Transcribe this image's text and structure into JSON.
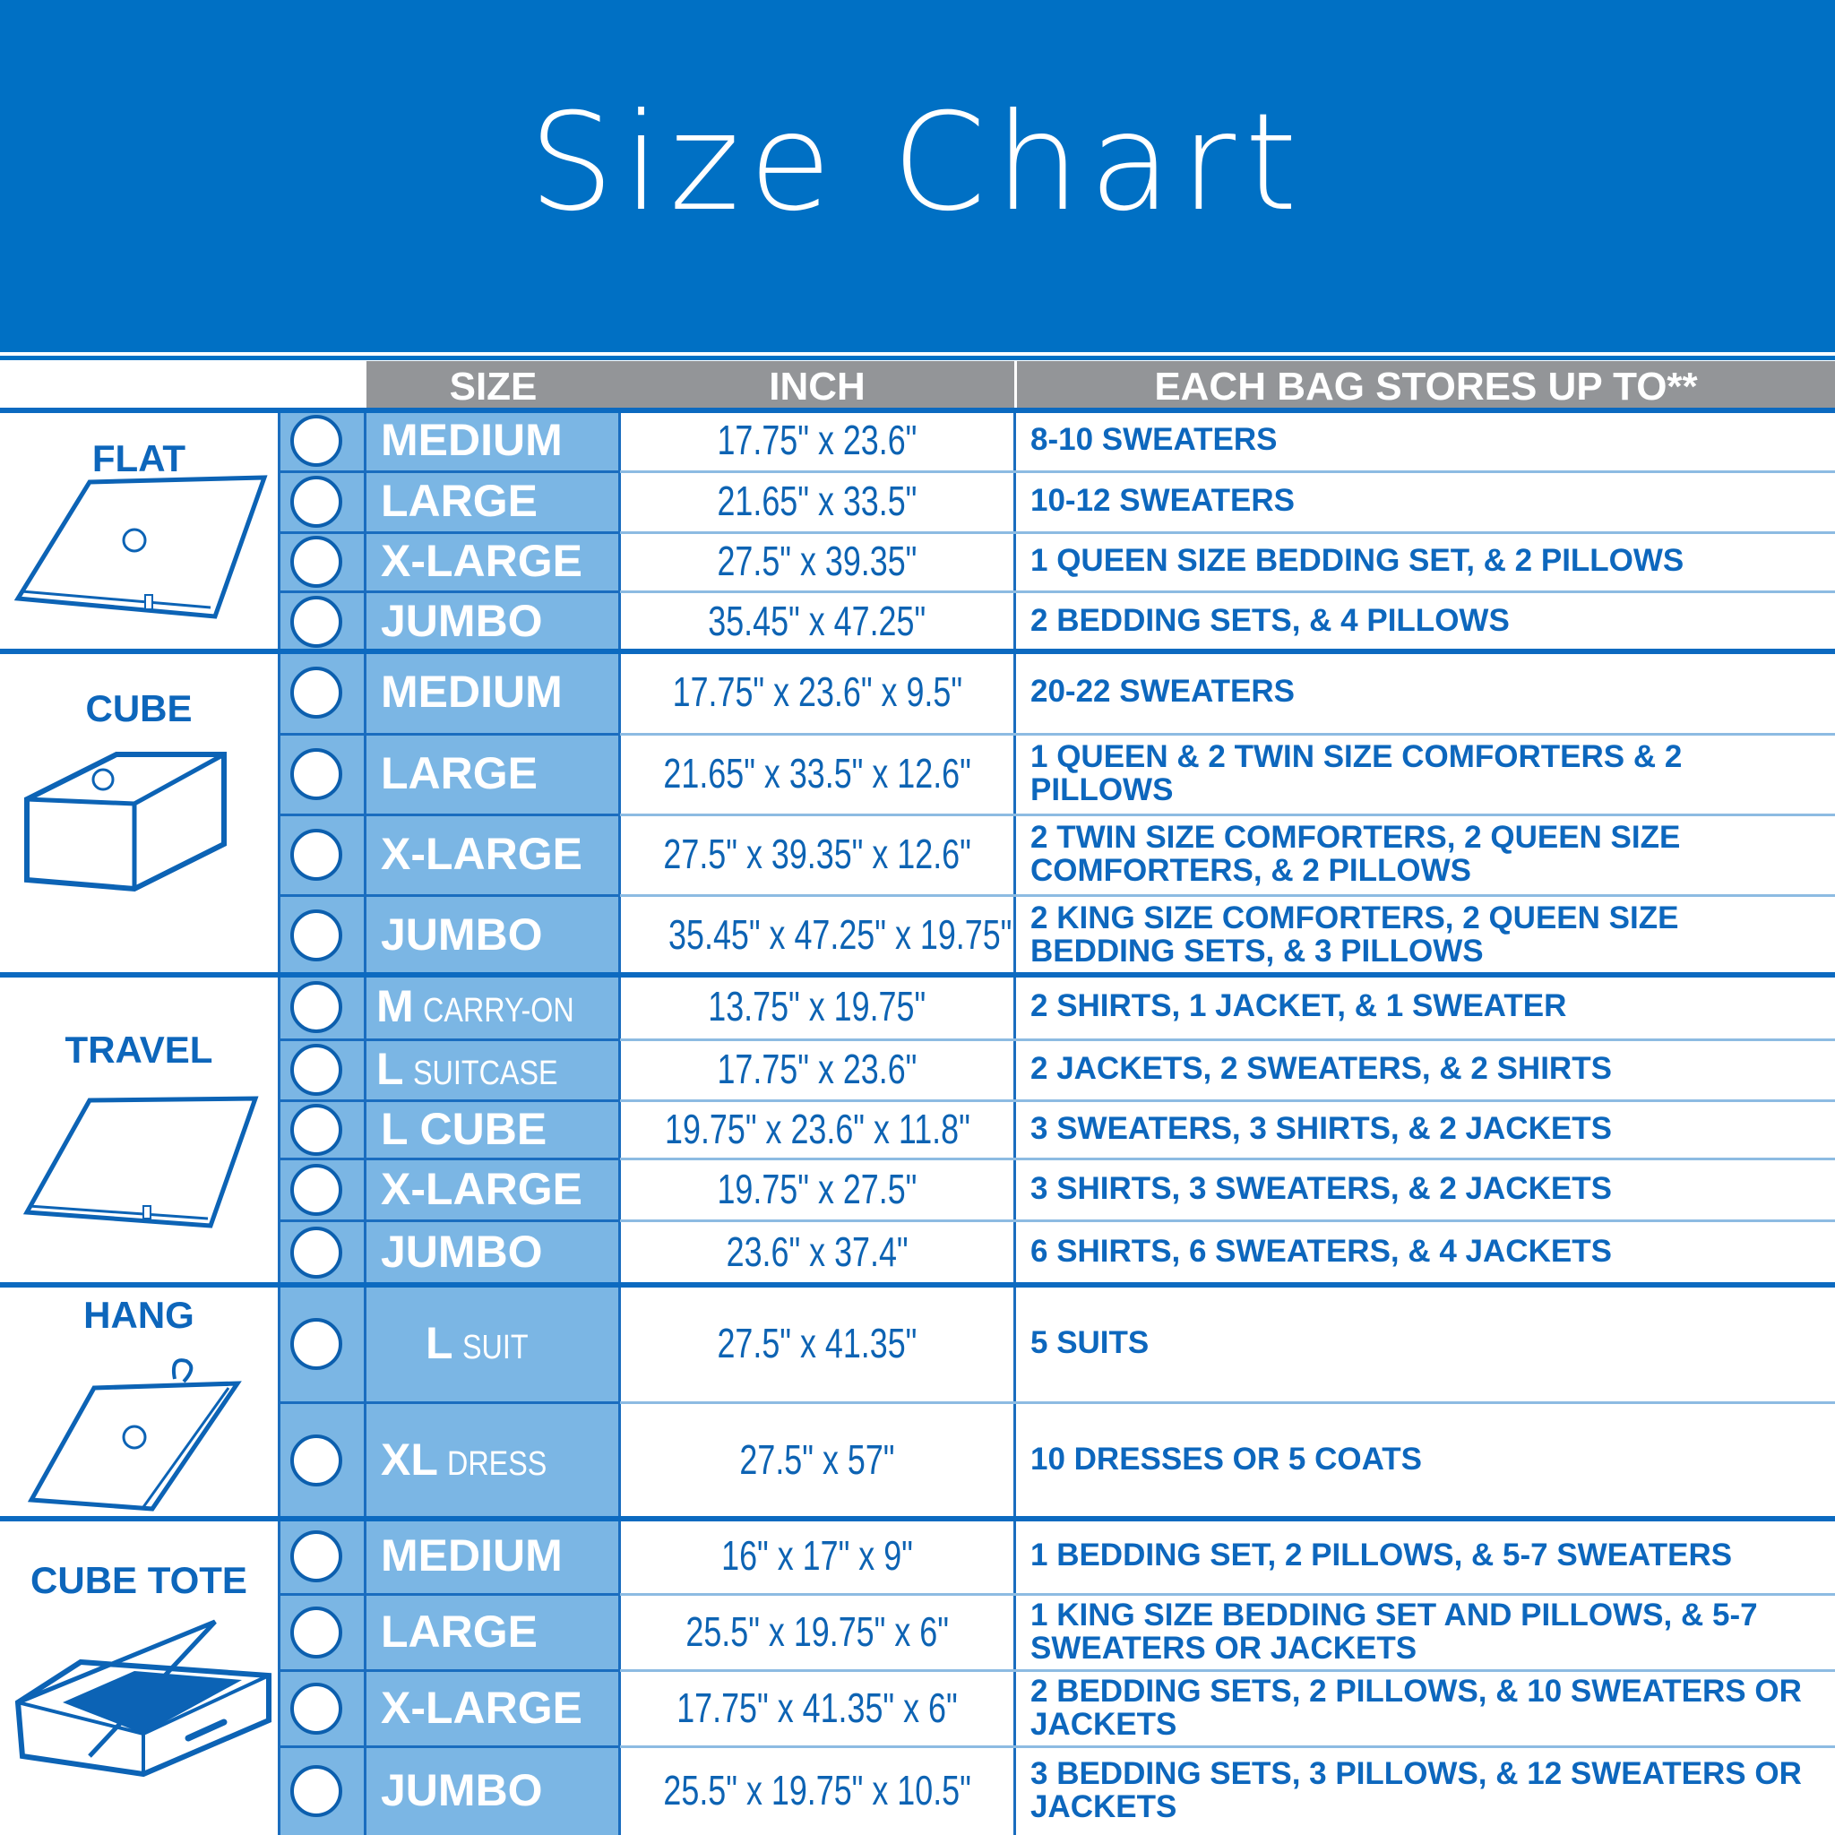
{
  "title": "Size Chart",
  "headers": {
    "size": "SIZE",
    "inch": "INCH",
    "stores": "EACH BAG STORES UP TO**"
  },
  "colors": {
    "banner": "#0070c4",
    "size_column": "#7bb6e4",
    "header_gray": "#939598",
    "text_blue": "#0d66bb"
  },
  "groups": [
    {
      "category": "FLAT",
      "icon": "flat-bag-icon",
      "rows": [
        {
          "size": "MEDIUM",
          "sub": "",
          "inch": "17.75\" x 23.6\"",
          "stores": "8-10 SWEATERS"
        },
        {
          "size": "LARGE",
          "sub": "",
          "inch": "21.65\" x 33.5\"",
          "stores": "10-12 SWEATERS"
        },
        {
          "size": "X-LARGE",
          "sub": "",
          "inch": "27.5\" x 39.35\"",
          "stores": "1 QUEEN SIZE BEDDING SET, & 2 PILLOWS"
        },
        {
          "size": "JUMBO",
          "sub": "",
          "inch": "35.45\" x 47.25\"",
          "stores": "2 BEDDING SETS, & 4 PILLOWS"
        }
      ]
    },
    {
      "category": "CUBE",
      "icon": "cube-bag-icon",
      "rows": [
        {
          "size": "MEDIUM",
          "sub": "",
          "inch": "17.75\" x 23.6\" x 9.5\"",
          "stores": "20-22 SWEATERS"
        },
        {
          "size": "LARGE",
          "sub": "",
          "inch": "21.65\" x 33.5\" x 12.6\"",
          "stores": "1 QUEEN & 2 TWIN SIZE COMFORTERS & 2 PILLOWS"
        },
        {
          "size": "X-LARGE",
          "sub": "",
          "inch": "27.5\" x 39.35\" x 12.6\"",
          "stores": "2 TWIN SIZE COMFORTERS, 2 QUEEN SIZE COMFORTERS, & 2 PILLOWS"
        },
        {
          "size": "JUMBO",
          "sub": "",
          "inch": "35.45\" x 47.25\" x 19.75\"",
          "stores": "2 KING SIZE COMFORTERS, 2 QUEEN SIZE BEDDING SETS, & 3 PILLOWS"
        }
      ]
    },
    {
      "category": "TRAVEL",
      "icon": "travel-bag-icon",
      "rows": [
        {
          "size": "M",
          "sub": "CARRY-ON",
          "inch": "13.75\" x 19.75\"",
          "stores": "2 SHIRTS, 1 JACKET, & 1 SWEATER"
        },
        {
          "size": "L",
          "sub": "SUITCASE",
          "inch": "17.75\" x 23.6\"",
          "stores": "2 JACKETS, 2 SWEATERS, & 2 SHIRTS"
        },
        {
          "size": "L CUBE",
          "sub": "",
          "inch": "19.75\" x 23.6\" x 11.8\"",
          "stores": "3 SWEATERS, 3 SHIRTS, & 2 JACKETS"
        },
        {
          "size": "X-LARGE",
          "sub": "",
          "inch": "19.75\" x 27.5\"",
          "stores": "3 SHIRTS, 3 SWEATERS, & 2 JACKETS"
        },
        {
          "size": "JUMBO",
          "sub": "",
          "inch": "23.6\" x 37.4\"",
          "stores": "6 SHIRTS, 6 SWEATERS, & 4 JACKETS"
        }
      ]
    },
    {
      "category": "HANG",
      "icon": "hanging-bag-icon",
      "rows": [
        {
          "size": "L",
          "sub": "SUIT",
          "inch": "27.5\" x 41.35\"",
          "stores": "5 SUITS"
        },
        {
          "size": "XL",
          "sub": "DRESS",
          "inch": "27.5\" x 57\"",
          "stores": "10 DRESSES OR 5 COATS"
        }
      ]
    },
    {
      "category": "CUBE TOTE",
      "icon": "cube-tote-icon",
      "rows": [
        {
          "size": "MEDIUM",
          "sub": "",
          "inch": "16\" x 17\" x 9\"",
          "stores": "1 BEDDING SET, 2 PILLOWS, & 5-7 SWEATERS"
        },
        {
          "size": "LARGE",
          "sub": "",
          "inch": "25.5\" x 19.75\" x 6\"",
          "stores": "1 KING SIZE BEDDING SET AND PILLOWS, & 5-7 SWEATERS OR JACKETS"
        },
        {
          "size": "X-LARGE",
          "sub": "",
          "inch": "17.75\" x 41.35\" x 6\"",
          "stores": "2 BEDDING SETS, 2 PILLOWS, & 10 SWEATERS OR JACKETS"
        },
        {
          "size": "JUMBO",
          "sub": "",
          "inch": "25.5\" x 19.75\" x 10.5\"",
          "stores": "3 BEDDING SETS, 3 PILLOWS, & 12 SWEATERS OR JACKETS"
        }
      ]
    }
  ]
}
